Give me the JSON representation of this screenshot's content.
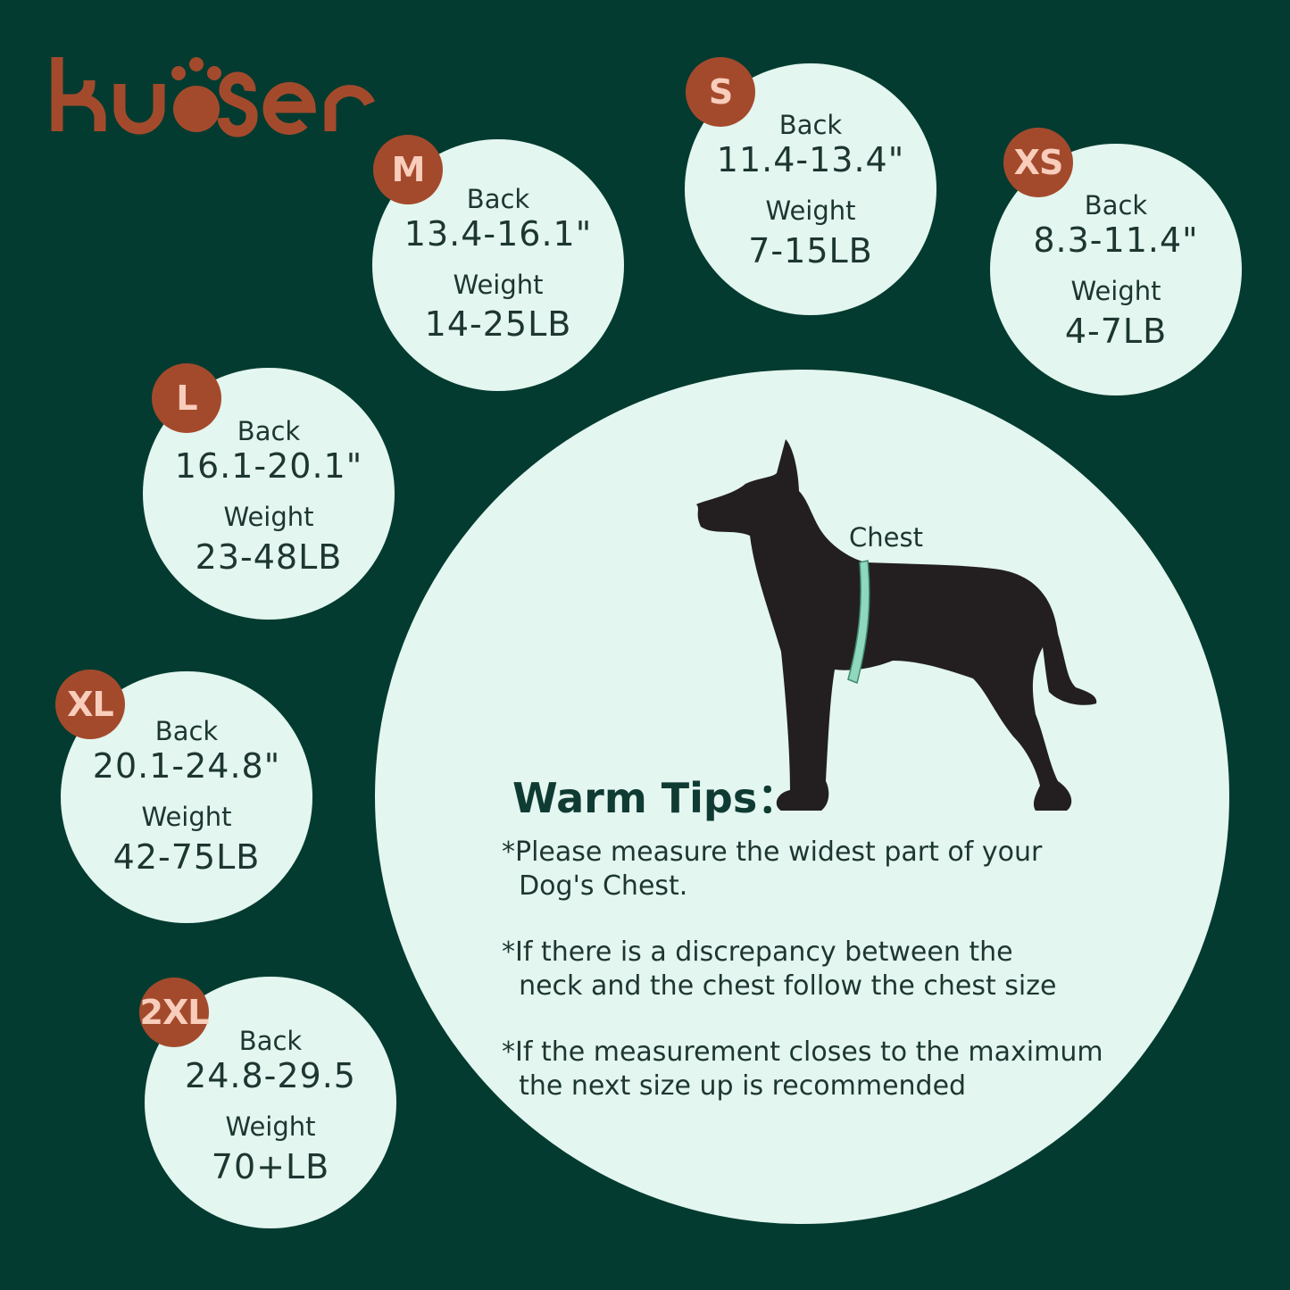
{
  "brand": {
    "logo_text": "kuoser",
    "color": "#a44a2c"
  },
  "colors": {
    "background": "#033b30",
    "circle": "#e3f6ef",
    "badge": "#a44a2c",
    "badge_text": "#f8cdbb",
    "tape": "#8fd8bd"
  },
  "sizes": [
    {
      "size": "M",
      "back_label": "Back",
      "back": "13.4-16.1\"",
      "weight_label": "Weight",
      "weight": "14-25LB"
    },
    {
      "size": "S",
      "back_label": "Back",
      "back": "11.4-13.4\"",
      "weight_label": "Weight",
      "weight": "7-15LB"
    },
    {
      "size": "XS",
      "back_label": "Back",
      "back": "8.3-11.4\"",
      "weight_label": "Weight",
      "weight": "4-7LB"
    },
    {
      "size": "L",
      "back_label": "Back",
      "back": "16.1-20.1\"",
      "weight_label": "Weight",
      "weight": "23-48LB"
    },
    {
      "size": "XL",
      "back_label": "Back",
      "back": "20.1-24.8\"",
      "weight_label": "Weight",
      "weight": "42-75LB"
    },
    {
      "size": "2XL",
      "back_label": "Back",
      "back": "24.8-29.5",
      "weight_label": "Weight",
      "weight": "70+LB"
    }
  ],
  "illustration": {
    "icon": "dog-silhouette-icon",
    "chest_label": "Chest"
  },
  "tips": {
    "title": "Warm Tips：",
    "items": [
      "*Please measure the widest part of your\n  Dog's Chest.",
      "*If there is a discrepancy between the\n  neck and the chest follow the chest size",
      "*If the measurement closes to the maximum\n  the next size up is recommended"
    ]
  }
}
